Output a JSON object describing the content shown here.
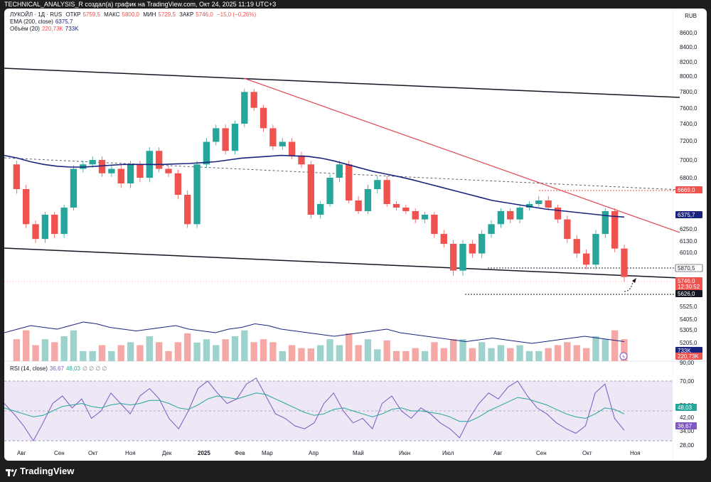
{
  "header": {
    "text": "TECHNICAL_ANALYSIS_R создал(а) график на TradingView.com, Окт 24, 2025 11:19 UTC+3"
  },
  "legend": {
    "symbol": "ЛУКОЙЛ · 1Д · RUS",
    "open_label": "ОТКР",
    "open": "5759,5",
    "high_label": "МАКС",
    "high": "5800,0",
    "low_label": "МИН",
    "low": "5729,5",
    "close_label": "ЗАКР",
    "close": "5746,0",
    "change": "−15,0 (−0,26%)",
    "ema_label": "EMA (200, close)",
    "ema_value": "6375,7",
    "volume_label": "Объём (20)",
    "volume_value": "220,73K",
    "volume_ma": "733K",
    "rsi_label": "RSI (14, close)",
    "rsi_value": "36,67",
    "rsi_ma": "48,03",
    "rsi_extra": "∅ ∅ ∅ ∅"
  },
  "currency": "RUB",
  "brand": "TradingView",
  "colors": {
    "up": "#26a69a",
    "down": "#ef5350",
    "ema": "#1a237e",
    "trend_red": "#e0525e",
    "rsi_line": "#7e57c2",
    "rsi_ma": "#26a69a",
    "rsi_band": "#ede7f6"
  },
  "chart_data": {
    "type": "candlestick",
    "price_ticks": [
      "8600,0",
      "8400,0",
      "8200,0",
      "8000,0",
      "7800,0",
      "7600,0",
      "7400,0",
      "7200,0",
      "7000,0",
      "6800,0",
      "6600,0",
      "6400,0",
      "6250,0",
      "6130,0",
      "6010,0",
      "5870,0",
      "5770,0",
      "5625,0",
      "5525,0",
      "5405,0",
      "5305,0",
      "5205,0",
      "90,00"
    ],
    "price_badges": [
      {
        "label": "6669,0",
        "color": "#ef5350"
      },
      {
        "label": "6375,7",
        "color": "#1a237e"
      },
      {
        "label": "5870,5",
        "color": "#ffffff"
      },
      {
        "label": "5746,0",
        "color": "#ef5350"
      },
      {
        "label": "12:30:52",
        "color": "#ef5350"
      },
      {
        "label": "5626,0",
        "color": "#131722"
      },
      {
        "label": "733K",
        "color": "#1a237e"
      },
      {
        "label": "220,73K",
        "color": "#ef5350"
      }
    ],
    "rsi_ticks": [
      "70,00",
      "50,00",
      "42,00",
      "34,00",
      "28,00"
    ],
    "rsi_badges": [
      {
        "label": "48,03",
        "color": "#26a69a"
      },
      {
        "label": "36,67",
        "color": "#7e57c2"
      }
    ],
    "x_labels": [
      "Авг",
      "Сен",
      "Окт",
      "Ноя",
      "Дек",
      "2025",
      "Фев",
      "Мар",
      "Апр",
      "Май",
      "Июн",
      "Июл",
      "Авг",
      "Сен",
      "Окт",
      "Ноя"
    ],
    "close_path": [
      6950,
      6700,
      6300,
      6150,
      6400,
      6200,
      6500,
      6900,
      6950,
      7000,
      6850,
      6900,
      6750,
      6950,
      6800,
      7100,
      6900,
      6850,
      6650,
      6300,
      6950,
      7200,
      7350,
      7100,
      7400,
      7800,
      7600,
      7350,
      7150,
      7200,
      7050,
      6950,
      6400,
      6550,
      6800,
      6950,
      6600,
      6450,
      6700,
      6780,
      6550,
      6500,
      6450,
      6350,
      6400,
      6200,
      6100,
      5850,
      6100,
      6000,
      6200,
      6300,
      6450,
      6350,
      6500,
      6550,
      6600,
      6500,
      6350,
      6150,
      6000,
      5900,
      6200,
      6450,
      6050,
      5800
    ],
    "ema_path": [
      7050,
      7020,
      6980,
      6950,
      6930,
      6920,
      6920,
      6930,
      6940,
      6950,
      6950,
      6950,
      6950,
      6955,
      6960,
      6970,
      6980,
      7000,
      7020,
      7030,
      7040,
      7050,
      7045,
      7040,
      7020,
      6990,
      6950,
      6910,
      6870,
      6840,
      6810,
      6780,
      6750,
      6720,
      6690,
      6660,
      6630,
      6600,
      6570,
      6540,
      6510,
      6480,
      6460,
      6440,
      6420,
      6400,
      6385,
      6375
    ],
    "volume_ma_path": [
      280,
      300,
      320,
      310,
      300,
      320,
      340,
      330,
      310,
      300,
      290,
      300,
      310,
      320,
      300,
      290,
      280,
      300,
      310,
      330,
      320,
      300,
      290,
      280,
      270,
      260,
      270,
      280,
      290,
      300,
      280,
      270,
      260,
      250,
      240,
      230,
      240,
      250,
      240,
      230,
      220,
      230,
      240,
      250,
      260,
      250,
      240,
      230
    ],
    "rsi_path": [
      55,
      48,
      40,
      30,
      42,
      55,
      60,
      52,
      58,
      45,
      50,
      62,
      55,
      48,
      60,
      65,
      58,
      45,
      38,
      50,
      65,
      70,
      62,
      55,
      58,
      68,
      72,
      60,
      48,
      45,
      40,
      38,
      42,
      55,
      62,
      50,
      42,
      45,
      38,
      55,
      60,
      50,
      45,
      52,
      48,
      42,
      38,
      32,
      45,
      55,
      62,
      58,
      66,
      70,
      60,
      52,
      48,
      42,
      38,
      35,
      40,
      62,
      68,
      45,
      37
    ],
    "rsi_ma_path": [
      52,
      50,
      48,
      46,
      47,
      50,
      53,
      54,
      55,
      53,
      52,
      54,
      55,
      54,
      55,
      57,
      57,
      55,
      52,
      51,
      54,
      58,
      60,
      59,
      58,
      60,
      62,
      61,
      58,
      55,
      52,
      49,
      47,
      48,
      51,
      52,
      50,
      48,
      46,
      48,
      51,
      52,
      50,
      50,
      49,
      48,
      46,
      43,
      43,
      46,
      50,
      53,
      56,
      59,
      58,
      56,
      54,
      51,
      48,
      46,
      45,
      48,
      52,
      51,
      48
    ]
  }
}
